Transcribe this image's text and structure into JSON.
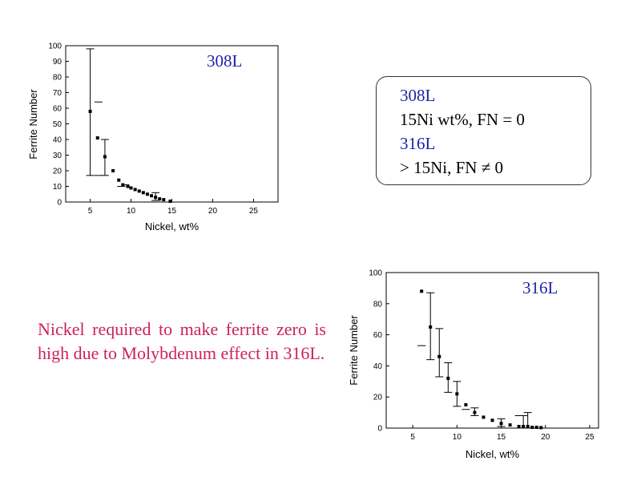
{
  "chart_data": [
    {
      "type": "scatter",
      "title": "308L",
      "xlabel": "Nickel, wt%",
      "ylabel": "Ferrite Number",
      "xlim": [
        2,
        28
      ],
      "ylim": [
        0,
        100
      ],
      "xticks": [
        5,
        10,
        15,
        20,
        25
      ],
      "yticks": [
        0,
        10,
        20,
        30,
        40,
        50,
        60,
        70,
        80,
        90,
        100
      ],
      "points": [
        {
          "x": 5.0,
          "y": 58,
          "err_low": 17,
          "err_high": 98
        },
        {
          "x": 5.9,
          "y": 41
        },
        {
          "x": 6.8,
          "y": 29,
          "err_low": 17,
          "err_high": 40
        },
        {
          "x": 7.8,
          "y": 20
        },
        {
          "x": 8.5,
          "y": 14
        },
        {
          "x": 9.0,
          "y": 11
        },
        {
          "x": 9.6,
          "y": 10
        },
        {
          "x": 10.0,
          "y": 9
        },
        {
          "x": 10.5,
          "y": 8
        },
        {
          "x": 11.0,
          "y": 7
        },
        {
          "x": 11.5,
          "y": 6
        },
        {
          "x": 12.0,
          "y": 5
        },
        {
          "x": 12.5,
          "y": 4
        },
        {
          "x": 13.0,
          "y": 3,
          "err_low": 1,
          "err_high": 6
        },
        {
          "x": 13.5,
          "y": 2
        },
        {
          "x": 14.0,
          "y": 1.5
        },
        {
          "x": 14.8,
          "y": 0.5
        }
      ],
      "extra_marks": [
        {
          "x": 6.0,
          "y": 64
        },
        {
          "x": 6.0,
          "y": 17
        },
        {
          "x": 9.3,
          "y": 11
        },
        {
          "x": 8.8,
          "y": 10
        }
      ]
    },
    {
      "type": "scatter",
      "title": "316L",
      "xlabel": "Nickel, wt%",
      "ylabel": "Ferrite Number",
      "xlim": [
        2,
        26
      ],
      "ylim": [
        0,
        100
      ],
      "xticks": [
        5,
        10,
        15,
        20,
        25
      ],
      "yticks": [
        0,
        20,
        40,
        60,
        80,
        100
      ],
      "points": [
        {
          "x": 6.0,
          "y": 88
        },
        {
          "x": 7.0,
          "y": 65,
          "err_low": 44,
          "err_high": 87
        },
        {
          "x": 8.0,
          "y": 46,
          "err_low": 33,
          "err_high": 64
        },
        {
          "x": 9.0,
          "y": 32,
          "err_low": 23,
          "err_high": 42
        },
        {
          "x": 10.0,
          "y": 22,
          "err_low": 14,
          "err_high": 30
        },
        {
          "x": 11.0,
          "y": 15
        },
        {
          "x": 12.0,
          "y": 10,
          "err_low": 8,
          "err_high": 13
        },
        {
          "x": 13.0,
          "y": 7
        },
        {
          "x": 14.0,
          "y": 5
        },
        {
          "x": 15.0,
          "y": 3,
          "err_low": 1,
          "err_high": 6
        },
        {
          "x": 16.0,
          "y": 2
        },
        {
          "x": 17.0,
          "y": 1
        },
        {
          "x": 17.5,
          "y": 1,
          "err_low": 0,
          "err_high": 8
        },
        {
          "x": 18.0,
          "y": 1,
          "err_low": 0,
          "err_high": 10
        },
        {
          "x": 18.5,
          "y": 0.5
        },
        {
          "x": 19.0,
          "y": 0.5
        },
        {
          "x": 19.5,
          "y": 0.3
        }
      ],
      "extra_marks": [
        {
          "x": 6.0,
          "y": 53
        },
        {
          "x": 11.0,
          "y": 12
        },
        {
          "x": 17.0,
          "y": 8
        }
      ]
    }
  ],
  "info_box": {
    "line1": "308L",
    "line2": "15Ni wt%, FN = 0",
    "line3": "316L",
    "line4": "> 15Ni, FN ≠ 0"
  },
  "note": "Nickel required to make ferrite zero is high due to Molybdenum effect in 316L."
}
